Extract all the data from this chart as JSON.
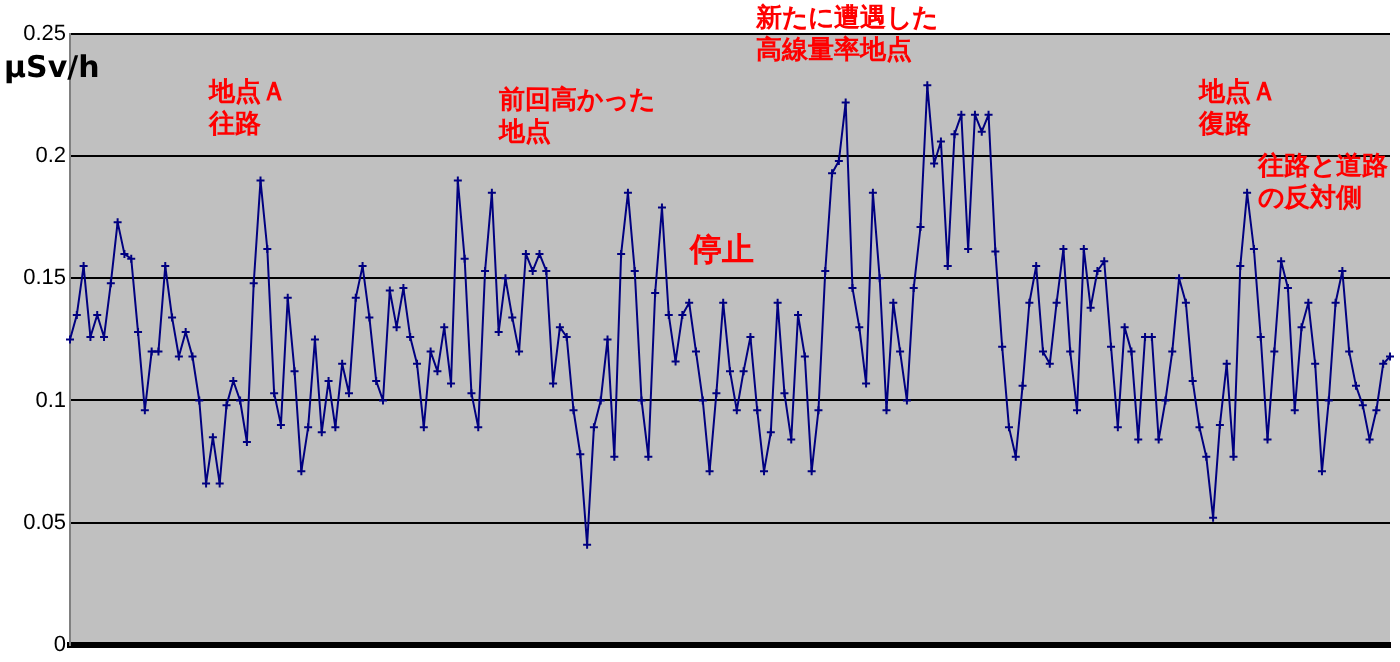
{
  "chart_data": {
    "type": "line",
    "ylabel": "μSv/h",
    "annotations": [
      "地点Ａ",
      "往路",
      "前回高かった",
      "地点",
      "停止",
      "新たに遭遇した",
      "高線量率地点",
      "地点Ａ",
      "復路",
      "往路と道路",
      "の反対側"
    ],
    "categories": [
      null,
      null,
      null,
      null,
      null,
      null,
      null,
      null,
      null,
      null,
      null,
      null,
      null,
      null,
      null,
      null,
      null,
      null,
      null,
      null,
      null,
      null,
      null,
      null,
      null,
      null,
      null,
      null,
      null,
      null,
      null,
      null,
      null,
      null,
      null,
      null,
      null,
      null,
      null,
      null,
      null,
      null,
      null,
      null,
      null,
      null,
      null,
      null,
      null,
      null,
      null,
      null,
      null,
      null,
      null,
      null,
      null,
      null,
      null,
      null,
      null,
      null,
      null,
      null,
      null,
      null,
      null,
      null,
      null,
      null,
      null,
      null,
      null,
      null,
      null,
      null,
      null,
      null,
      null,
      null,
      null,
      null,
      null,
      null,
      null,
      null,
      null,
      null,
      null,
      null,
      null,
      null,
      null,
      null,
      null,
      null,
      null,
      null,
      null,
      null,
      null,
      null,
      null,
      null,
      null,
      null,
      null,
      null,
      null,
      null,
      null,
      null,
      null,
      null,
      null,
      null,
      null,
      null,
      null,
      null,
      null,
      null,
      null,
      null,
      null,
      null,
      null,
      null,
      null,
      null,
      null,
      null,
      null,
      null,
      null,
      null,
      null,
      null,
      null,
      null,
      null,
      null,
      null,
      null,
      null,
      null,
      null,
      null,
      null,
      null,
      null,
      null,
      null,
      null,
      null,
      null,
      null,
      null,
      null,
      null,
      null,
      null,
      null,
      null,
      null,
      null,
      null,
      null,
      null,
      null,
      null,
      null,
      null,
      null,
      null,
      null,
      null,
      null,
      null,
      null,
      null,
      null,
      null,
      null,
      null,
      null,
      null,
      null,
      null,
      null,
      null,
      null,
      null,
      null,
      null
    ],
    "series": [
      {
        "color": "#000080",
        "values": [
          0.125,
          0.135,
          0.155,
          0.126,
          0.135,
          0.126,
          0.148,
          0.173,
          0.16,
          0.158,
          0.128,
          0.096,
          0.12,
          0.12,
          0.155,
          0.134,
          0.118,
          0.128,
          0.118,
          0.1,
          0.066,
          0.085,
          0.066,
          0.098,
          0.108,
          0.1,
          0.083,
          0.148,
          0.19,
          0.162,
          0.103,
          0.09,
          0.142,
          0.112,
          0.071,
          0.089,
          0.125,
          0.087,
          0.108,
          0.089,
          0.115,
          0.103,
          0.142,
          0.155,
          0.134,
          0.108,
          0.1,
          0.145,
          0.13,
          0.146,
          0.126,
          0.115,
          0.089,
          0.12,
          0.112,
          0.13,
          0.107,
          0.19,
          0.158,
          0.103,
          0.089,
          0.153,
          0.185,
          0.128,
          0.15,
          0.134,
          0.12,
          0.16,
          0.153,
          0.16,
          0.153,
          0.107,
          0.13,
          0.126,
          0.096,
          0.078,
          0.041,
          0.089,
          0.1,
          0.125,
          0.077,
          0.16,
          0.185,
          0.153,
          0.1,
          0.077,
          0.144,
          0.179,
          0.135,
          0.116,
          0.135,
          0.14,
          0.12,
          0.1,
          0.071,
          0.103,
          0.14,
          0.112,
          0.096,
          0.112,
          0.126,
          0.096,
          0.071,
          0.087,
          0.14,
          0.103,
          0.084,
          0.135,
          0.118,
          0.071,
          0.096,
          0.153,
          0.193,
          0.198,
          0.222,
          0.146,
          0.13,
          0.107,
          0.185,
          0.15,
          0.096,
          0.14,
          0.12,
          0.1,
          0.146,
          0.171,
          0.229,
          0.197,
          0.206,
          0.155,
          0.209,
          0.217,
          0.162,
          0.217,
          0.21,
          0.217,
          0.161,
          0.122,
          0.089,
          0.077,
          0.106,
          0.14,
          0.155,
          0.12,
          0.115,
          0.14,
          0.162,
          0.12,
          0.096,
          0.162,
          0.138,
          0.153,
          0.157,
          0.122,
          0.089,
          0.13,
          0.12,
          0.084,
          0.126,
          0.126,
          0.084,
          0.1,
          0.12,
          0.15,
          0.14,
          0.108,
          0.089,
          0.077,
          0.052,
          0.09,
          0.115,
          0.077,
          0.155,
          0.185,
          0.162,
          0.126,
          0.084,
          0.12,
          0.157,
          0.146,
          0.096,
          0.13,
          0.14,
          0.115,
          0.071,
          0.1,
          0.14,
          0.153,
          0.12,
          0.106,
          0.098,
          0.084,
          0.096,
          0.115,
          0.118
        ]
      }
    ],
    "ylim": [
      0,
      0.25
    ],
    "yticks": [
      0,
      0.05,
      0.1,
      0.15,
      0.2,
      0.25
    ],
    "grid": "y",
    "legend": false,
    "tick_labels": "y",
    "marker": "cross",
    "line_style": "solid"
  }
}
